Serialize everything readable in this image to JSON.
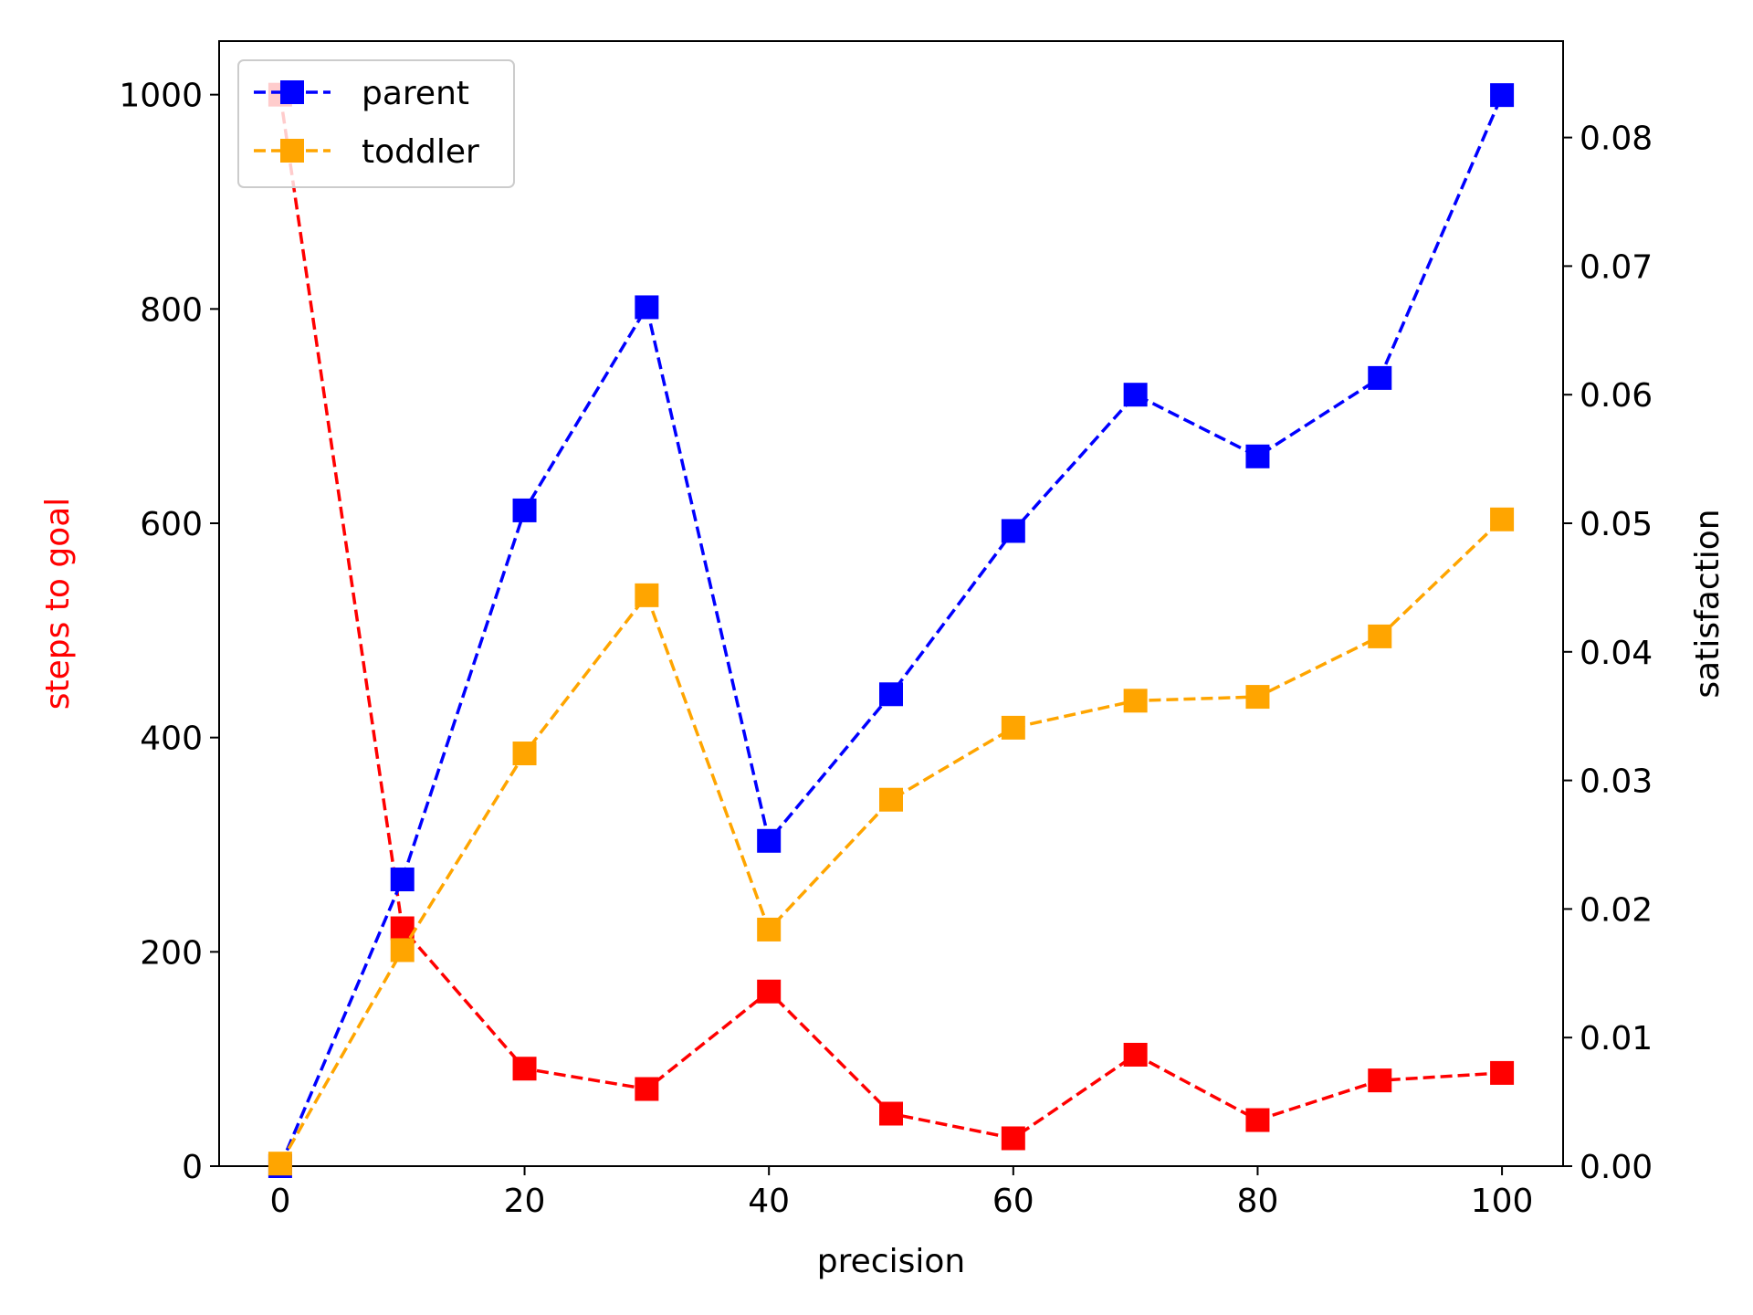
{
  "chart_data": {
    "type": "line",
    "x": [
      0,
      10,
      20,
      30,
      40,
      50,
      60,
      70,
      80,
      90,
      100
    ],
    "xlabel": "precision",
    "xlim": [
      -5,
      105
    ],
    "xticks": [
      0,
      20,
      40,
      60,
      80,
      100
    ],
    "left_axis": {
      "label": "steps to goal",
      "label_color": "#ff0000",
      "ylim": [
        0,
        1050
      ],
      "ticks": [
        0,
        200,
        400,
        600,
        800,
        1000
      ]
    },
    "right_axis": {
      "label": "satisfaction",
      "ylim": [
        0,
        0.0875
      ],
      "ticks": [
        "0.00",
        "0.01",
        "0.02",
        "0.03",
        "0.04",
        "0.05",
        "0.06",
        "0.07",
        "0.08"
      ]
    },
    "series": [
      {
        "axis": "left",
        "color": "#ff0000",
        "style": "dashed",
        "marker": "square",
        "values": [
          1000,
          222,
          91,
          72,
          163,
          49,
          26,
          104,
          43,
          80,
          87
        ]
      },
      {
        "name": "parent",
        "axis": "right",
        "color": "#0000ff",
        "style": "dashed",
        "marker": "square",
        "values": [
          0.0,
          0.0223,
          0.051,
          0.0668,
          0.0253,
          0.0367,
          0.0494,
          0.06,
          0.0552,
          0.0613,
          0.0833
        ]
      },
      {
        "name": "toddler",
        "axis": "right",
        "color": "#ffa500",
        "style": "dashed",
        "marker": "square",
        "values": [
          0.0002,
          0.0168,
          0.0321,
          0.0444,
          0.0184,
          0.0285,
          0.0341,
          0.0362,
          0.0365,
          0.0412,
          0.0503
        ]
      }
    ],
    "legend": {
      "location": "top-left",
      "entries": [
        "parent",
        "toddler"
      ]
    },
    "grid": false
  }
}
